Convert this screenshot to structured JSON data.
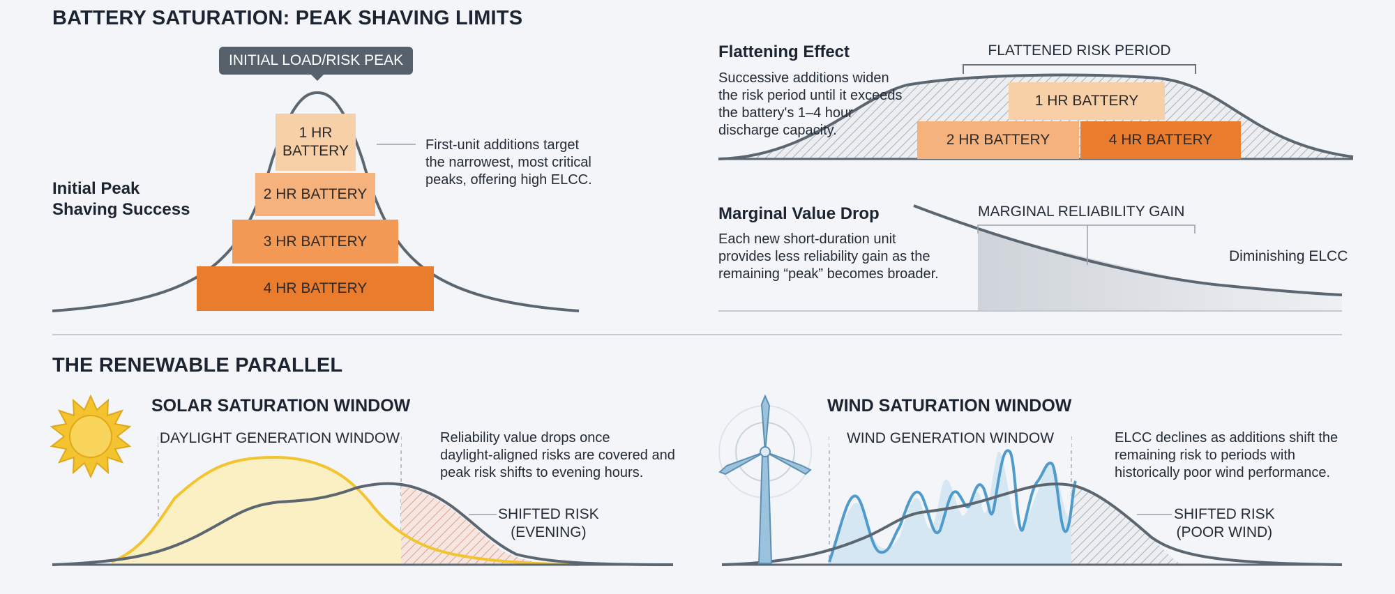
{
  "header": {
    "title": "BATTERY SATURATION: PEAK SHAVING LIMITS"
  },
  "peak_panel": {
    "callout": "INITIAL LOAD/RISK PEAK",
    "side_title_line1": "Initial Peak",
    "side_title_line2": "Shaving Success",
    "note_line1": "First-unit additions target",
    "note_line2": "the narrowest, most critical",
    "note_line3": "peaks, offering high ELCC.",
    "bat1_line1": "1 HR",
    "bat1_line2": "BATTERY",
    "bat2": "2 HR BATTERY",
    "bat3": "3 HR BATTERY",
    "bat4": "4 HR BATTERY"
  },
  "flatten_panel": {
    "title": "Flattening Effect",
    "desc_line1": "Successive additions widen",
    "desc_line2": "the risk period until it exceeds",
    "desc_line3": "the battery's 1–4 hour",
    "desc_line4": "discharge capacity.",
    "bracket_label": "FLATTENED RISK PERIOD",
    "bat1": "1 HR BATTERY",
    "bat2": "2 HR BATTERY",
    "bat4": "4 HR BATTERY"
  },
  "marginal_panel": {
    "title": "Marginal Value Drop",
    "desc_line1": "Each new short-duration unit",
    "desc_line2": "provides less reliability gain as the",
    "desc_line3": "remaining “peak” becomes broader.",
    "gain_label": "MARGINAL RELIABILITY GAIN",
    "diminishing_label": "Diminishing ELCC"
  },
  "renewable": {
    "title": "THE RENEWABLE PARALLEL"
  },
  "solar_panel": {
    "title": "SOLAR SATURATION WINDOW",
    "window_label": "DAYLIGHT GENERATION WINDOW",
    "note_line1": "Reliability value drops once",
    "note_line2": "daylight-aligned risks are covered and",
    "note_line3": "peak risk shifts to evening hours.",
    "shift_line1": "SHIFTED RISK",
    "shift_line2": "(EVENING)",
    "icon": "sun-icon"
  },
  "wind_panel": {
    "title": "WIND SATURATION WINDOW",
    "window_label": "WIND GENERATION WINDOW",
    "note_line1": "ELCC declines as additions shift the",
    "note_line2": "remaining risk to periods with",
    "note_line3": "historically poor wind performance.",
    "shift_line1": "SHIFTED RISK",
    "shift_line2": "(POOR WIND)",
    "icon": "wind-turbine-icon"
  },
  "colors": {
    "battery_1": "#f8d0a8",
    "battery_2": "#f6b27c",
    "battery_3": "#f29a55",
    "battery_4": "#ea7c2e",
    "curve": "#5c6670",
    "solar": "#f4c430",
    "wind": "#4f9bcc"
  }
}
